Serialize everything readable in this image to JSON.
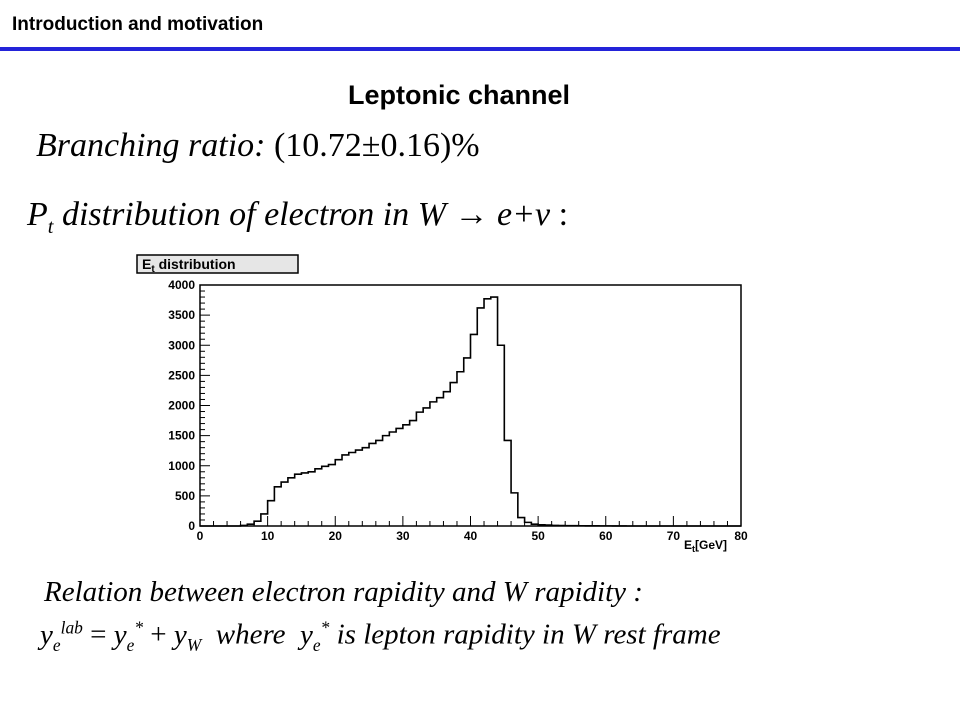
{
  "header": {
    "section_title": "Introduction and motivation"
  },
  "slide": {
    "title": "Leptonic channel",
    "branching": {
      "label": "Branching ratio:",
      "value": "(10.72±0.16)%"
    },
    "pt_line": {
      "p": "P",
      "p_sub": "t",
      "text": "distribution of electron in",
      "w": "W",
      "arrow": "→",
      "products": "e+ν",
      "colon": ":"
    },
    "relation_line": "Relation between electron rapidity and W rapidity :",
    "equation": {
      "y1": "y",
      "y1_sub": "e",
      "y1_sup": "lab",
      "eq": "=",
      "y2": "y",
      "y2_sub": "e",
      "y2_sup": "*",
      "plus": "+",
      "y3": "y",
      "y3_sub": "W",
      "where": "where",
      "y4": "y",
      "y4_sub": "e",
      "y4_sup": "*",
      "tail": "is lepton rapidity in W rest frame"
    }
  },
  "chart_data": {
    "type": "bar",
    "title": "E",
    "title_sub": "t",
    "title_rest": " distribution",
    "xlabel": "E",
    "xlabel_sub": "t",
    "xlabel_rest": "[GeV]",
    "ylabel": "",
    "xlim": [
      0,
      80
    ],
    "ylim": [
      0,
      4000
    ],
    "x_ticks": [
      0,
      10,
      20,
      30,
      40,
      50,
      60,
      70,
      80
    ],
    "y_ticks": [
      0,
      500,
      1000,
      1500,
      2000,
      2500,
      3000,
      3500,
      4000
    ],
    "bin_width": 1,
    "bin_start": 0,
    "values": [
      0,
      0,
      0,
      0,
      0,
      0,
      10,
      30,
      80,
      200,
      420,
      650,
      730,
      800,
      860,
      880,
      900,
      950,
      990,
      1020,
      1100,
      1180,
      1220,
      1260,
      1300,
      1370,
      1420,
      1500,
      1560,
      1620,
      1680,
      1750,
      1890,
      1960,
      2060,
      2130,
      2230,
      2380,
      2560,
      2790,
      3180,
      3620,
      3770,
      3800,
      3000,
      1420,
      550,
      140,
      60,
      30,
      20,
      15,
      10,
      8,
      6,
      5,
      4,
      3,
      3,
      2,
      2,
      1,
      1,
      0,
      0,
      0,
      0,
      0,
      0,
      0,
      0,
      0,
      0,
      0,
      0,
      0,
      0,
      0,
      0,
      0
    ],
    "grid": false,
    "colors": {
      "line": "#000000",
      "title_box_bg": "#e6e6e6"
    }
  }
}
